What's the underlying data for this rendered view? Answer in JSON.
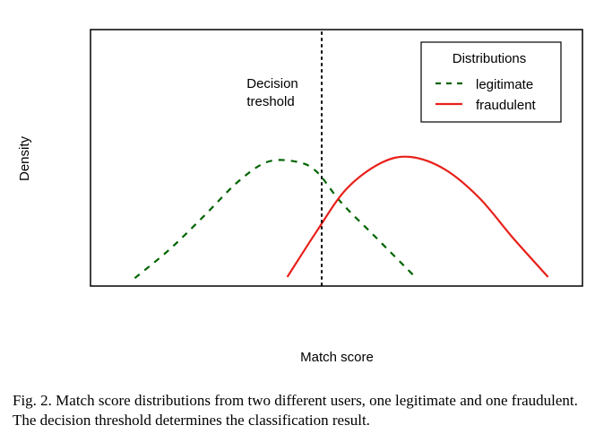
{
  "chart_data": {
    "type": "line",
    "title": "",
    "xlabel": "Match score",
    "ylabel": "Density",
    "x_ticks": "none",
    "y_ticks": "none",
    "xlim": [
      0,
      10
    ],
    "ylim": [
      0,
      1
    ],
    "grid": false,
    "legend": {
      "title": "Distributions",
      "placement": "top-right",
      "entries": [
        "legitimate",
        "fraudulent"
      ]
    },
    "threshold": {
      "x": 4.7,
      "label_line1": "Decision",
      "label_line2": "treshold",
      "style": "dotted"
    },
    "series": [
      {
        "name": "legitimate",
        "color": "#006400",
        "style": "dashed",
        "x": [
          0.9,
          1.6,
          2.3,
          3.0,
          3.6,
          4.2,
          4.6,
          5.1,
          5.8,
          6.6
        ],
        "y": [
          0.02,
          0.25,
          0.52,
          0.8,
          0.96,
          0.96,
          0.88,
          0.63,
          0.35,
          0.03
        ]
      },
      {
        "name": "fraudulent",
        "color": "#e8201a",
        "style": "solid",
        "x": [
          4.0,
          4.6,
          5.2,
          5.9,
          6.5,
          7.2,
          7.9,
          8.6,
          9.3
        ],
        "y": [
          0.03,
          0.4,
          0.74,
          0.95,
          1.0,
          0.9,
          0.67,
          0.34,
          0.03
        ]
      }
    ]
  },
  "caption": "Fig. 2.  Match score distributions from two different users, one legitimate and one fraudulent. The decision threshold determines the classification result."
}
